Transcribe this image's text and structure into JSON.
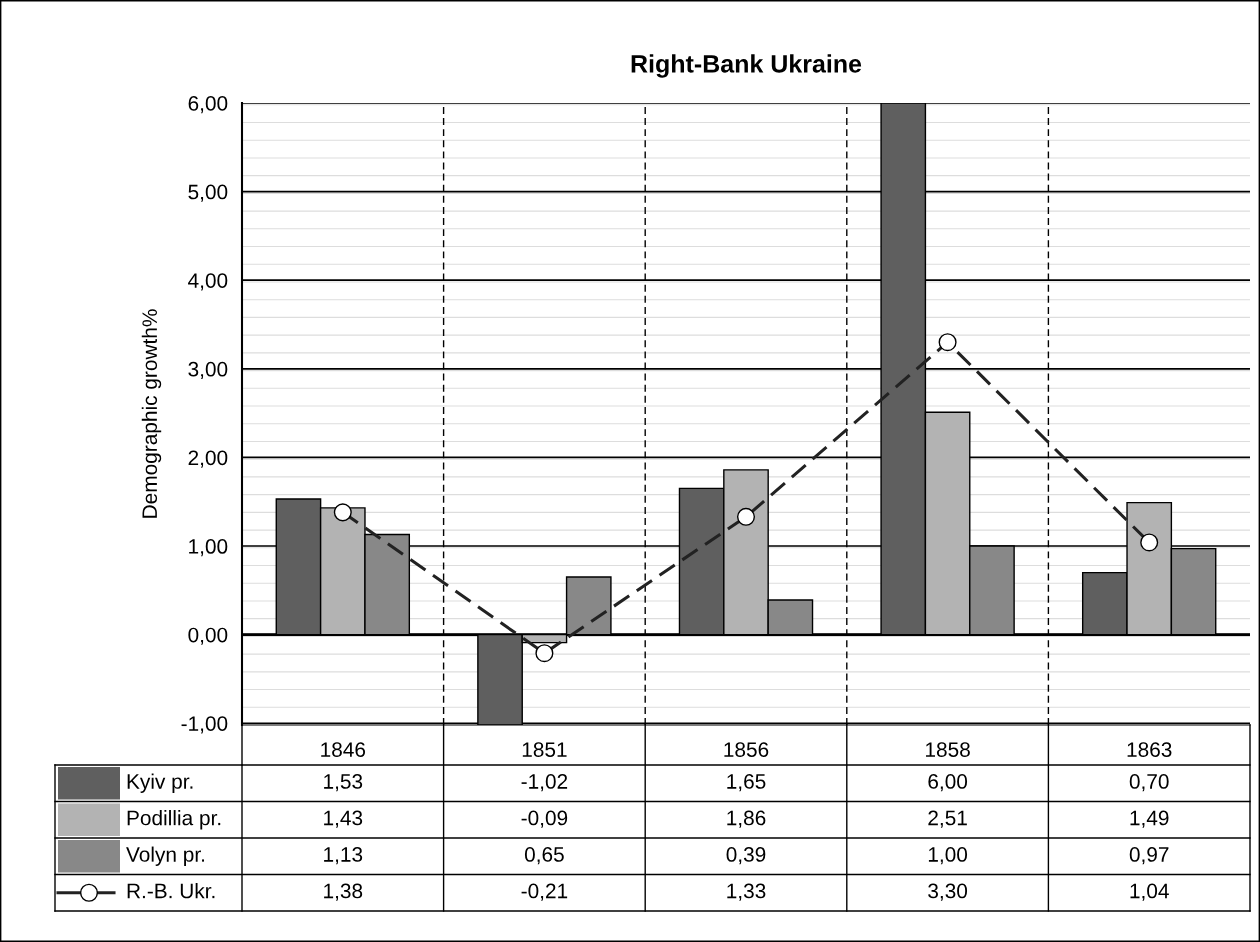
{
  "chart_data": {
    "type": "bar",
    "title": "Right-Bank Ukraine",
    "ylabel": "Demographic growth%",
    "categories": [
      "1846",
      "1851",
      "1856",
      "1858",
      "1863"
    ],
    "series": [
      {
        "name": "Kyiv pr.",
        "color": "#5f5f5f",
        "values": [
          1.53,
          -1.02,
          1.65,
          6.0,
          0.7
        ],
        "value_labels": [
          "1,53",
          "-1,02",
          "1,65",
          "6,00",
          "0,70"
        ]
      },
      {
        "name": "Podillia pr.",
        "color": "#b3b3b3",
        "values": [
          1.43,
          -0.09,
          1.86,
          2.51,
          1.49
        ],
        "value_labels": [
          "1,43",
          "-0,09",
          "1,86",
          "2,51",
          "1,49"
        ]
      },
      {
        "name": "Volyn pr.",
        "color": "#888888",
        "values": [
          1.13,
          0.65,
          0.39,
          1.0,
          0.97
        ],
        "value_labels": [
          "1,13",
          "0,65",
          "0,39",
          "1,00",
          "0,97"
        ]
      },
      {
        "name": "R.-B. Ukr.",
        "type": "line",
        "color": "#222222",
        "marker": "circle",
        "line_style": "dashed",
        "values": [
          1.38,
          -0.21,
          1.33,
          3.3,
          1.04
        ],
        "value_labels": [
          "1,38",
          "-0,21",
          "1,33",
          "3,30",
          "1,04"
        ]
      }
    ],
    "ylim": [
      -1.02,
      6
    ],
    "yticks": [
      {
        "value": -1,
        "label": "-1,00"
      },
      {
        "value": 0,
        "label": "0,00"
      },
      {
        "value": 1,
        "label": "1,00"
      },
      {
        "value": 2,
        "label": "2,00"
      },
      {
        "value": 3,
        "label": "3,00"
      },
      {
        "value": 4,
        "label": "4,00"
      },
      {
        "value": 5,
        "label": "5,00"
      },
      {
        "value": 6,
        "label": "6,00"
      }
    ],
    "grid": true,
    "legend": "bottom"
  }
}
